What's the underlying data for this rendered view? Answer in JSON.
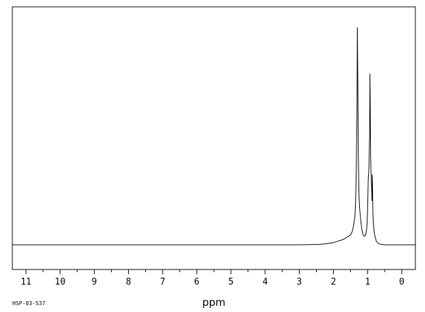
{
  "chart_data": {
    "type": "line",
    "title": "",
    "xlabel": "ppm",
    "ylabel": "",
    "sample_code": "HSP-03-537",
    "xlim": [
      11.4,
      -0.4
    ],
    "x_reversed": true,
    "ylim": [
      -0.1,
      1.0
    ],
    "grid": false,
    "legend": "none",
    "tick_labels": [
      "11",
      "10",
      "9",
      "8",
      "7",
      "6",
      "5",
      "4",
      "3",
      "2",
      "1",
      "0"
    ],
    "tick_values": [
      11,
      10,
      9,
      8,
      7,
      6,
      5,
      4,
      3,
      2,
      1,
      0
    ],
    "line_color": "#000000",
    "series": [
      {
        "x": [
          11.4,
          3.0,
          2.4,
          2.2,
          2.0,
          1.9,
          1.8,
          1.7,
          1.6,
          1.55,
          1.5,
          1.45,
          1.42,
          1.4,
          1.37,
          1.35,
          1.33,
          1.31,
          1.3,
          1.29,
          1.28,
          1.27,
          1.26,
          1.25,
          1.23,
          1.2,
          1.17,
          1.14,
          1.11,
          1.08,
          1.05,
          1.02,
          1.0,
          0.98,
          0.96,
          0.94,
          0.93,
          0.92,
          0.91,
          0.9,
          0.89,
          0.88,
          0.87,
          0.86,
          0.85,
          0.84,
          0.82,
          0.8,
          0.77,
          0.74,
          0.7,
          0.65,
          0.6,
          0.5,
          0.3,
          -0.4
        ],
        "y": [
          0.0,
          0.0,
          0.002,
          0.005,
          0.01,
          0.015,
          0.02,
          0.025,
          0.035,
          0.04,
          0.045,
          0.06,
          0.08,
          0.1,
          0.13,
          0.2,
          0.35,
          0.6,
          0.99,
          0.82,
          0.6,
          0.4,
          0.3,
          0.22,
          0.16,
          0.11,
          0.07,
          0.05,
          0.04,
          0.04,
          0.05,
          0.08,
          0.15,
          0.3,
          0.35,
          0.5,
          0.78,
          0.6,
          0.4,
          0.33,
          0.3,
          0.25,
          0.2,
          0.32,
          0.2,
          0.12,
          0.08,
          0.05,
          0.03,
          0.015,
          0.008,
          0.004,
          0.002,
          0.0,
          0.0,
          0.0
        ]
      }
    ]
  }
}
